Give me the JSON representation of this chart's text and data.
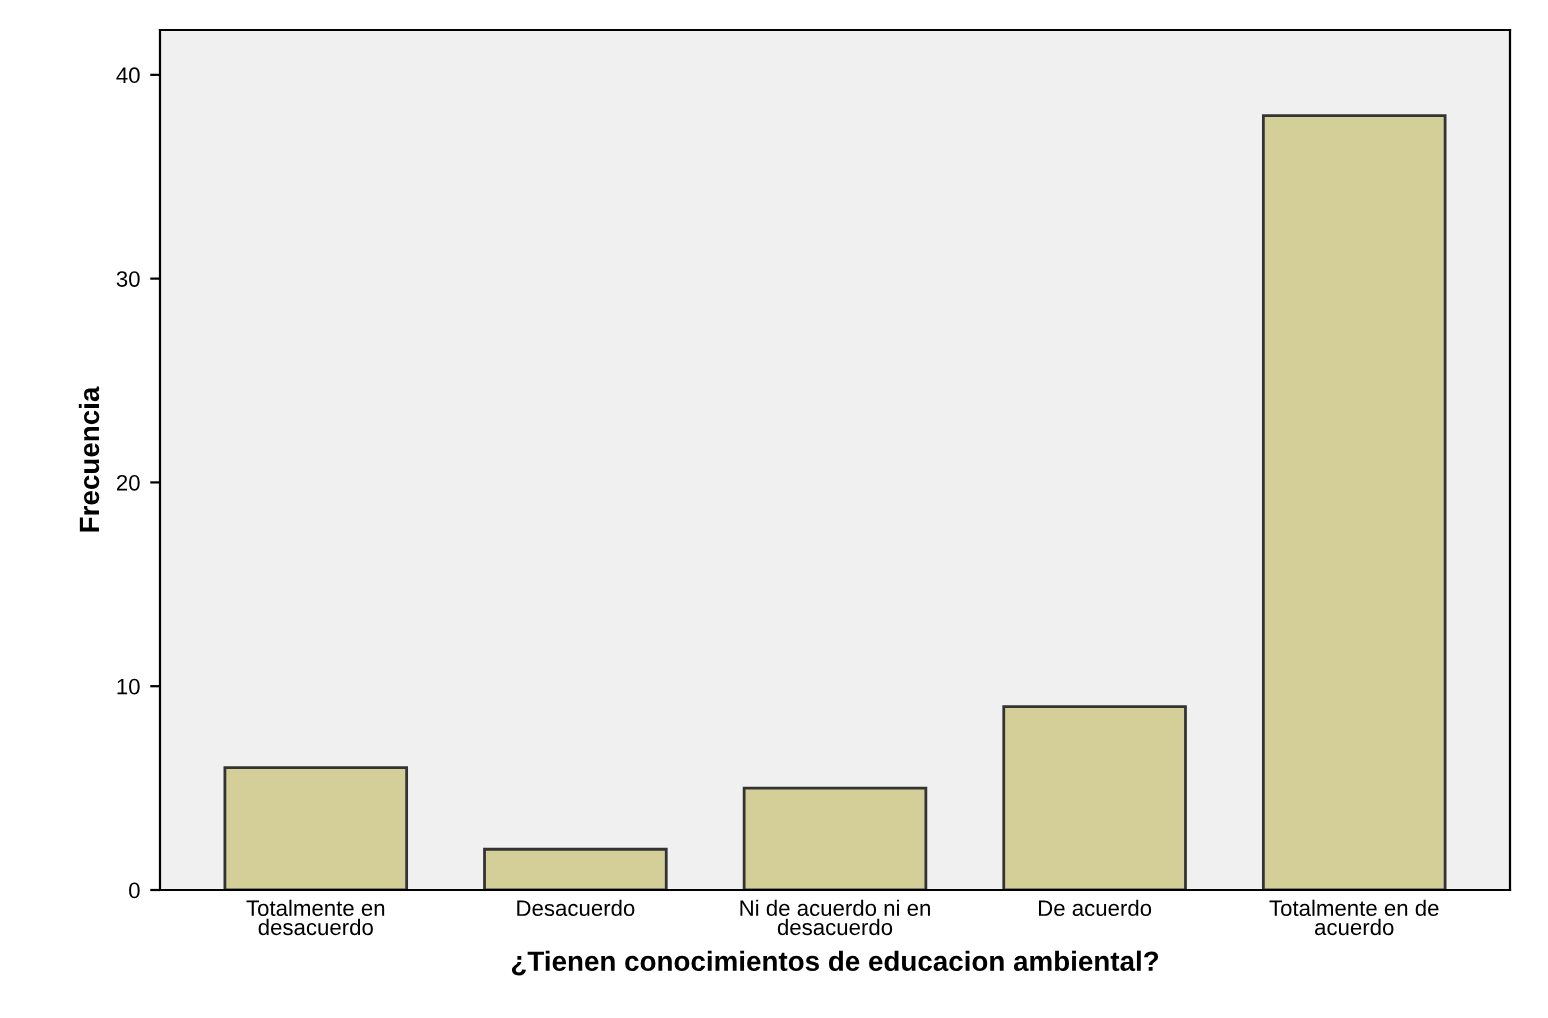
{
  "chart_data": {
    "type": "bar",
    "xlabel": "¿Tienen conocimientos de educacion ambiental?",
    "ylabel": "Frecuencia",
    "categories": [
      "Totalmente en\ndesacuerdo",
      "Desacuerdo",
      "Ni de acuerdo ni en\ndesacuerdo",
      "De acuerdo",
      "Totalmente en de\nacuerdo"
    ],
    "values": [
      6,
      2,
      5,
      9,
      38
    ],
    "color": "#d4cf98",
    "ylim": [
      0,
      42.2
    ],
    "yticks": [
      0,
      10,
      20,
      30,
      40
    ],
    "grid": false
  }
}
